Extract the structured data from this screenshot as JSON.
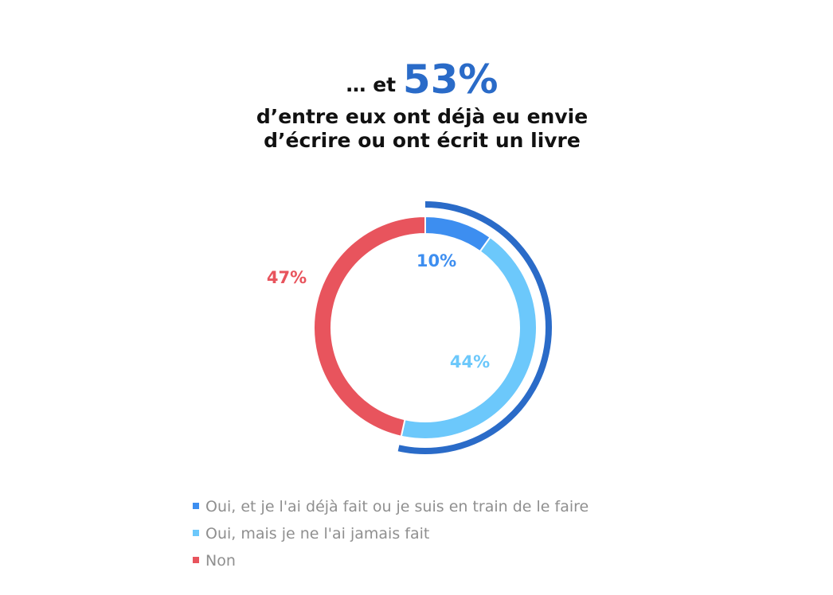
{
  "title": {
    "prefix": "… et",
    "highlight": "53%",
    "line2": "d’entre eux ont déjà eu envie",
    "line3": "d’écrire ou ont écrit un livre"
  },
  "colors": {
    "highlight": "#2a6bc8",
    "outer_arc": "#2a6bc8"
  },
  "chart_data": {
    "type": "pie",
    "variant": "donut",
    "slices": [
      {
        "label": "Oui, et je l'ai déjà fait ou je suis en train de le faire",
        "value": 10,
        "display": "10%",
        "color": "#3d8ef0"
      },
      {
        "label": "Oui, mais je ne l'ai jamais fait",
        "value": 44,
        "display": "44%",
        "color": "#6cc8fb"
      },
      {
        "label": "Non",
        "value": 47,
        "display": "47%",
        "color": "#e8545d"
      }
    ],
    "highlight_group": {
      "slices": [
        0,
        1
      ],
      "total": 53
    },
    "legend_position": "bottom"
  }
}
